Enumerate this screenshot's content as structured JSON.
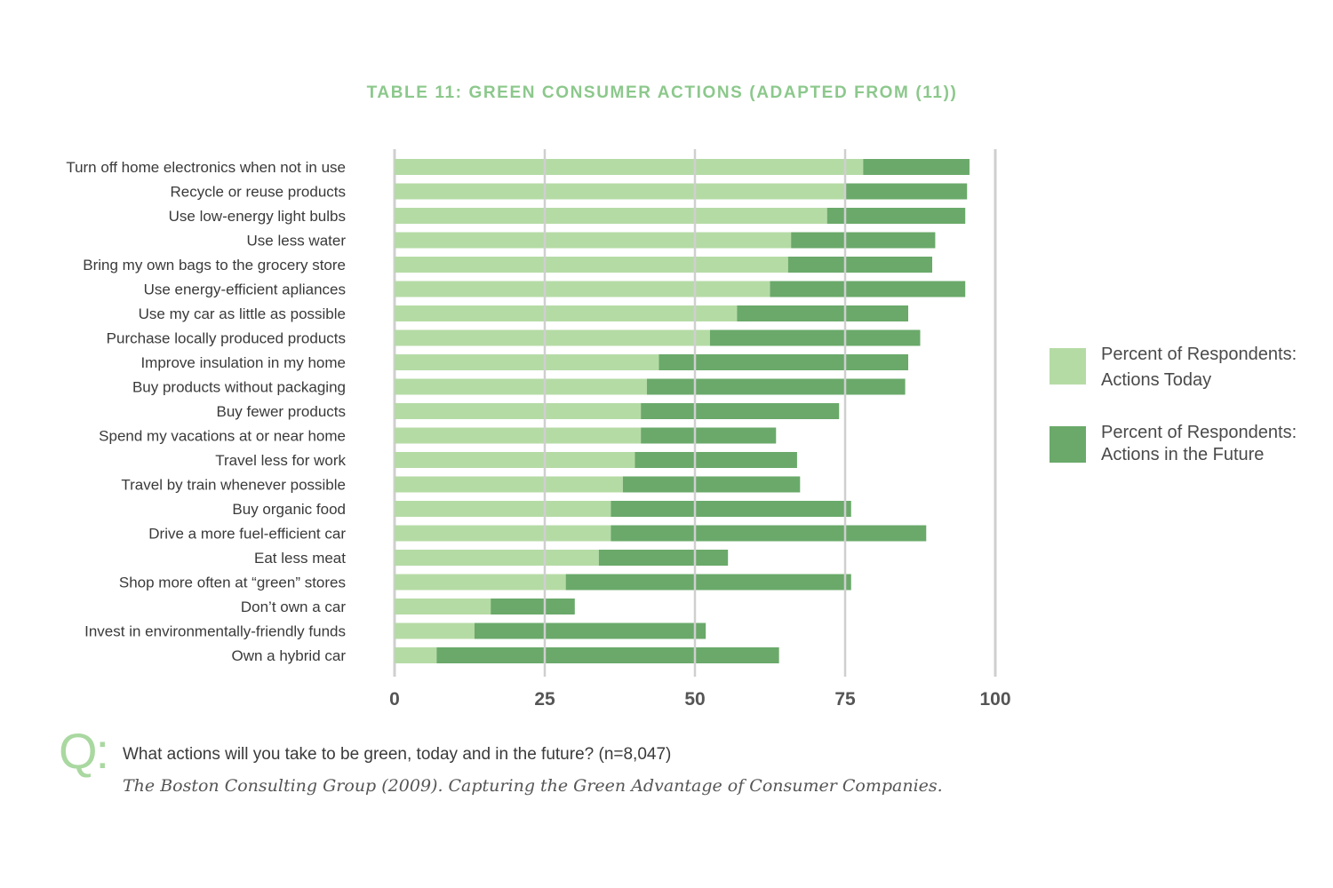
{
  "chart_data": {
    "type": "bar",
    "orientation": "horizontal",
    "stacked": true,
    "title": "TABLE 11: GREEN CONSUMER ACTIONS (ADAPTED FROM (11))",
    "categories": [
      "Turn off home electronics when not in use",
      "Recycle or reuse products",
      "Use low-energy light bulbs",
      "Use less water",
      "Bring my own bags to the grocery store",
      "Use energy-efficient apliances",
      "Use my car as little as possible",
      "Purchase locally produced products",
      "Improve insulation in my home",
      "Buy products without packaging",
      "Buy fewer products",
      "Spend my vacations at or near home",
      "Travel less for work",
      "Travel by train whenever possible",
      "Buy organic food",
      "Drive a more fuel-efficient car",
      "Eat less meat",
      "Shop more often at “green” stores",
      "Don’t own a car",
      "Invest in environmentally-friendly funds",
      "Own a hybrid car"
    ],
    "series": [
      {
        "name": "Percent of Respondents: Actions Today",
        "color": "#b5dba5",
        "values": [
          78,
          75,
          72,
          66,
          65.5,
          62.5,
          57,
          52.5,
          44,
          42,
          41,
          41,
          40,
          38,
          36,
          36,
          34,
          28.5,
          16,
          13.3,
          7
        ]
      },
      {
        "name": "Percent of Respondents: Actions in the Future",
        "color": "#6aa96a",
        "values": [
          17.7,
          20.3,
          23,
          24,
          24,
          32.5,
          28.5,
          35,
          41.5,
          43,
          33,
          22.5,
          27,
          29.5,
          40,
          52.5,
          21.5,
          47.5,
          14,
          38.5,
          57
        ]
      }
    ],
    "xlim": [
      0,
      100
    ],
    "xticks": [
      0,
      25,
      50,
      75,
      100
    ],
    "grid": true,
    "legend_position": "right"
  },
  "legend": [
    {
      "line1": "Percent of Respondents:",
      "line2": "Actions Today"
    },
    {
      "line1": "Percent of Respondents:",
      "line2": "Actions in the Future"
    }
  ],
  "footer": {
    "q_mark": "Q:",
    "question": "What actions will you take to be green, today and in the future? (n=8,047)",
    "source": "The Boston Consulting Group (2009). Capturing the Green Advantage of Consumer Companies."
  }
}
